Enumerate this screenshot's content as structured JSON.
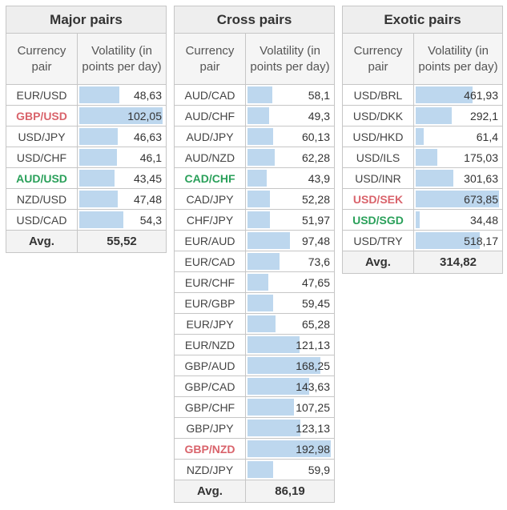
{
  "columns_header": {
    "pair": "Currency pair",
    "volatility": "Volatility (in points per day)"
  },
  "avg_label": "Avg.",
  "bar_color": "#bdd7ee",
  "pair_colors": {
    "red": "#d9636b",
    "green": "#2aa05a"
  },
  "tables": [
    {
      "title": "Major pairs",
      "max_value": 102.05,
      "rows": [
        {
          "pair": "EUR/USD",
          "volatility": "48,63",
          "value": 48.63
        },
        {
          "pair": "GBP/USD",
          "volatility": "102,05",
          "value": 102.05,
          "highlight": "red"
        },
        {
          "pair": "USD/JPY",
          "volatility": "46,63",
          "value": 46.63
        },
        {
          "pair": "USD/CHF",
          "volatility": "46,1",
          "value": 46.1
        },
        {
          "pair": "AUD/USD",
          "volatility": "43,45",
          "value": 43.45,
          "highlight": "green"
        },
        {
          "pair": "NZD/USD",
          "volatility": "47,48",
          "value": 47.48
        },
        {
          "pair": "USD/CAD",
          "volatility": "54,3",
          "value": 54.3
        }
      ],
      "avg": "55,52"
    },
    {
      "title": "Cross pairs",
      "max_value": 192.98,
      "rows": [
        {
          "pair": "AUD/CAD",
          "volatility": "58,1",
          "value": 58.1
        },
        {
          "pair": "AUD/CHF",
          "volatility": "49,3",
          "value": 49.3
        },
        {
          "pair": "AUD/JPY",
          "volatility": "60,13",
          "value": 60.13
        },
        {
          "pair": "AUD/NZD",
          "volatility": "62,28",
          "value": 62.28
        },
        {
          "pair": "CAD/CHF",
          "volatility": "43,9",
          "value": 43.9,
          "highlight": "green"
        },
        {
          "pair": "CAD/JPY",
          "volatility": "52,28",
          "value": 52.28
        },
        {
          "pair": "CHF/JPY",
          "volatility": "51,97",
          "value": 51.97
        },
        {
          "pair": "EUR/AUD",
          "volatility": "97,48",
          "value": 97.48
        },
        {
          "pair": "EUR/CAD",
          "volatility": "73,6",
          "value": 73.6
        },
        {
          "pair": "EUR/CHF",
          "volatility": "47,65",
          "value": 47.65
        },
        {
          "pair": "EUR/GBP",
          "volatility": "59,45",
          "value": 59.45
        },
        {
          "pair": "EUR/JPY",
          "volatility": "65,28",
          "value": 65.28
        },
        {
          "pair": "EUR/NZD",
          "volatility": "121,13",
          "value": 121.13
        },
        {
          "pair": "GBP/AUD",
          "volatility": "168,25",
          "value": 168.25
        },
        {
          "pair": "GBP/CAD",
          "volatility": "143,63",
          "value": 143.63
        },
        {
          "pair": "GBP/CHF",
          "volatility": "107,25",
          "value": 107.25
        },
        {
          "pair": "GBP/JPY",
          "volatility": "123,13",
          "value": 123.13
        },
        {
          "pair": "GBP/NZD",
          "volatility": "192,98",
          "value": 192.98,
          "highlight": "red"
        },
        {
          "pair": "NZD/JPY",
          "volatility": "59,9",
          "value": 59.9
        }
      ],
      "avg": "86,19"
    },
    {
      "title": "Exotic pairs",
      "max_value": 673.85,
      "rows": [
        {
          "pair": "USD/BRL",
          "volatility": "461,93",
          "value": 461.93
        },
        {
          "pair": "USD/DKK",
          "volatility": "292,1",
          "value": 292.1
        },
        {
          "pair": "USD/HKD",
          "volatility": "61,4",
          "value": 61.4
        },
        {
          "pair": "USD/ILS",
          "volatility": "175,03",
          "value": 175.03
        },
        {
          "pair": "USD/INR",
          "volatility": "301,63",
          "value": 301.63
        },
        {
          "pair": "USD/SEK",
          "volatility": "673,85",
          "value": 673.85,
          "highlight": "red"
        },
        {
          "pair": "USD/SGD",
          "volatility": "34,48",
          "value": 34.48,
          "highlight": "green"
        },
        {
          "pair": "USD/TRY",
          "volatility": "518,17",
          "value": 518.17
        }
      ],
      "avg": "314,82"
    }
  ]
}
